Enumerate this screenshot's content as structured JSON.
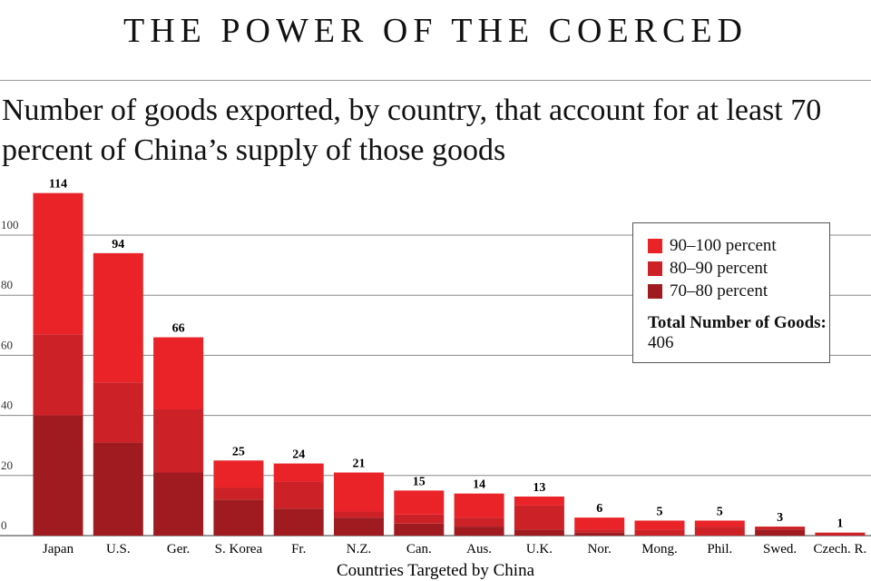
{
  "header": "THE POWER OF THE COERCED",
  "chart_data": {
    "type": "bar",
    "stacked": true,
    "title": "Number of goods exported, by country, that account for at least 70 percent of China’s supply of those goods",
    "xlabel": "Countries Targeted by China",
    "ylabel": "",
    "ylim": [
      0,
      114
    ],
    "yticks": [
      0,
      20,
      40,
      60,
      80,
      100
    ],
    "grid": true,
    "categories": [
      "Japan",
      "U.S.",
      "Ger.",
      "S. Korea",
      "Fr.",
      "N.Z.",
      "Can.",
      "Aus.",
      "U.K.",
      "Nor.",
      "Mong.",
      "Phil.",
      "Swed.",
      "Czech. R."
    ],
    "totals": [
      114,
      94,
      66,
      25,
      24,
      21,
      15,
      14,
      13,
      6,
      5,
      5,
      3,
      1
    ],
    "series": [
      {
        "name": "70–80 percent",
        "color": "#a01b20",
        "values": [
          40,
          31,
          21,
          12,
          9,
          6,
          4,
          3,
          2,
          1,
          0,
          0,
          2,
          0
        ]
      },
      {
        "name": "80–90 percent",
        "color": "#cc2127",
        "values": [
          27,
          20,
          21,
          4,
          9,
          2,
          3,
          3,
          8,
          1,
          2,
          3,
          1,
          1
        ]
      },
      {
        "name": "90–100 percent",
        "color": "#ea2328",
        "values": [
          47,
          43,
          24,
          9,
          6,
          13,
          8,
          8,
          3,
          4,
          3,
          2,
          0,
          0
        ]
      }
    ],
    "legend_position": "top-right",
    "legend_order": [
      2,
      1,
      0
    ],
    "total_label": "Total Number of Goods:",
    "total_value": "406"
  }
}
